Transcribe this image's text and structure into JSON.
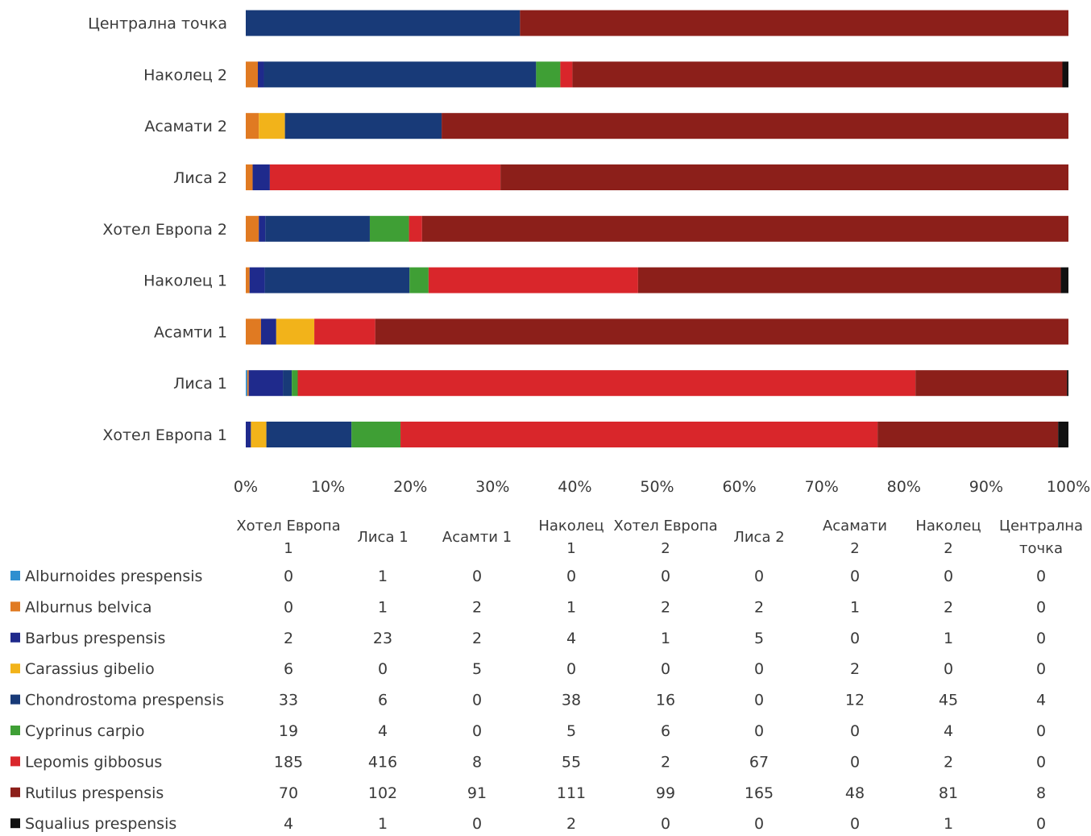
{
  "chart_data": {
    "type": "bar",
    "orientation": "horizontal",
    "stacked": "percent",
    "title": "",
    "xlabel": "",
    "ylabel": "",
    "xlim": [
      0,
      100
    ],
    "x_ticks": [
      "0%",
      "10%",
      "20%",
      "30%",
      "40%",
      "50%",
      "60%",
      "70%",
      "80%",
      "90%",
      "100%"
    ],
    "grid": false,
    "legend": "data-table-below",
    "categories": [
      "Хотел Европа 1",
      "Лиса 1",
      "Асамти 1",
      "Наколец 1",
      "Хотел Европа 2",
      "Лиса 2",
      "Асамати 2",
      "Наколец 2",
      "Централна точка"
    ],
    "table_headers": [
      "Хотел Европа 1",
      "Лиса 1",
      "Асамти 1",
      "Наколец 1",
      "Хотел Европа 2",
      "Лиса 2",
      "Асамати 2",
      "Наколец 2",
      "Централна точка"
    ],
    "series": [
      {
        "name": "Alburnoides prespensis",
        "color": "#2f8fd0",
        "values": [
          0,
          1,
          0,
          0,
          0,
          0,
          0,
          0,
          0
        ]
      },
      {
        "name": "Alburnus belvica",
        "color": "#e07a22",
        "values": [
          0,
          1,
          2,
          1,
          2,
          2,
          1,
          2,
          0
        ]
      },
      {
        "name": "Barbus prespensis",
        "color": "#1f2a8c",
        "values": [
          2,
          23,
          2,
          4,
          1,
          5,
          0,
          1,
          0
        ]
      },
      {
        "name": "Carassius gibelio",
        "color": "#f2b31a",
        "values": [
          6,
          0,
          5,
          0,
          0,
          0,
          2,
          0,
          0
        ]
      },
      {
        "name": "Chondrostoma prespensis",
        "color": "#183a78",
        "values": [
          33,
          6,
          0,
          38,
          16,
          0,
          12,
          45,
          4
        ]
      },
      {
        "name": "Cyprinus carpio",
        "color": "#3f9f35",
        "values": [
          19,
          4,
          0,
          5,
          6,
          0,
          0,
          4,
          0
        ]
      },
      {
        "name": "Lepomis gibbosus",
        "color": "#d9262b",
        "values": [
          185,
          416,
          8,
          55,
          2,
          67,
          0,
          2,
          0
        ]
      },
      {
        "name": "Rutilus prespensis",
        "color": "#8c1f1a",
        "values": [
          70,
          102,
          91,
          111,
          99,
          165,
          48,
          81,
          8
        ]
      },
      {
        "name": "Squalius prespensis",
        "color": "#111111",
        "values": [
          4,
          1,
          0,
          2,
          0,
          0,
          0,
          1,
          0
        ]
      }
    ]
  }
}
